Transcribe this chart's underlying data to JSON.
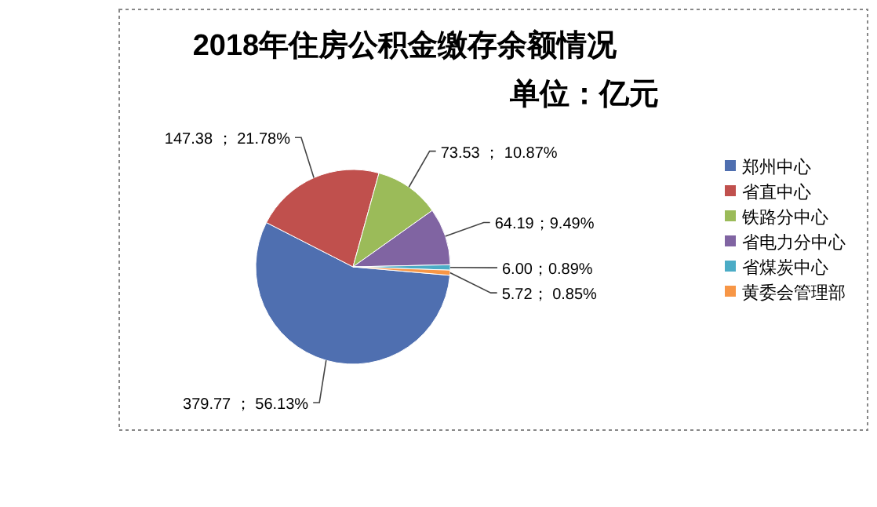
{
  "chart_data": {
    "type": "pie",
    "title": "2018年住房公积金缴存余额情况",
    "subtitle": "单位：亿元",
    "categories": [
      "郑州中心",
      "省直中心",
      "铁路分中心",
      "省电力分中心",
      "省煤炭中心",
      "黄委会管理部"
    ],
    "values": [
      379.77,
      147.38,
      73.53,
      64.19,
      6.0,
      5.72
    ],
    "colors": [
      "#4f6fb0",
      "#c0504d",
      "#9bbb59",
      "#8064a2",
      "#4bacc6",
      "#f79646"
    ],
    "value_labels": [
      "379.77 ； 56.13%",
      "147.38 ； 21.78%",
      "73.53 ； 10.87%",
      "64.19；9.49%",
      "6.00；0.89%",
      "5.72； 0.85%"
    ],
    "legend": "right"
  }
}
